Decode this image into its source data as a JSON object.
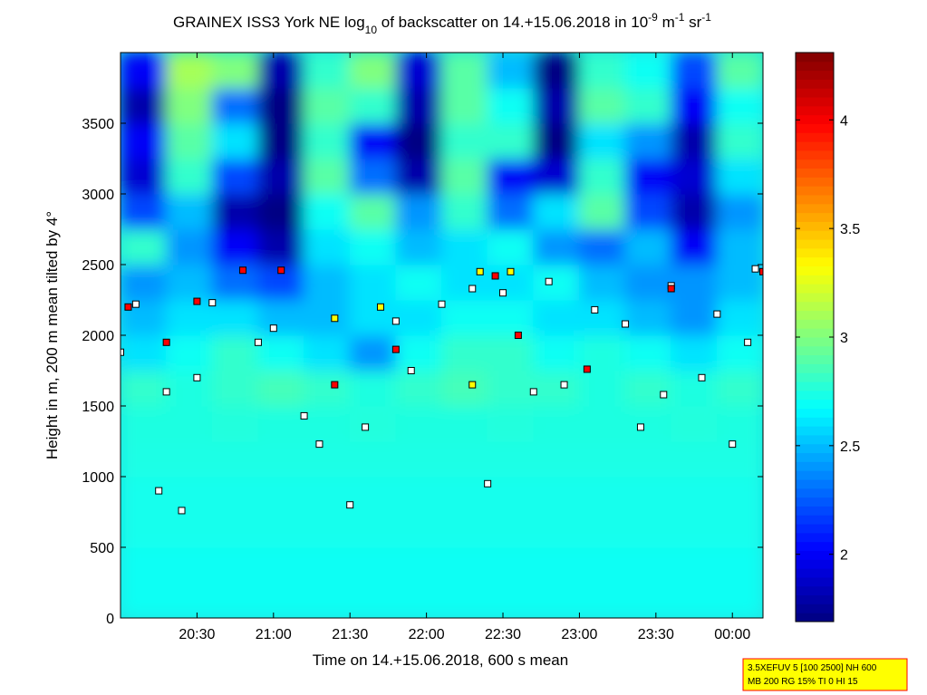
{
  "chart_data": {
    "type": "heatmap",
    "title": [
      "GRAINEX ISS3 York NE log",
      "10",
      " of backscatter on 14.+15.06.2018 in 10",
      "-9",
      " m",
      "-1",
      " sr",
      "-1"
    ],
    "xlabel": "Time on 14.+15.06.2018, 600 s mean",
    "ylabel": "Height in m, 200 m mean tilted by 4°",
    "xlim": [
      20,
      24.2
    ],
    "ylim": [
      0,
      4000
    ],
    "xticks": [
      {
        "value": 20.5,
        "label": "20:30"
      },
      {
        "value": 21,
        "label": "21:00"
      },
      {
        "value": 21.5,
        "label": "21:30"
      },
      {
        "value": 22,
        "label": "22:00"
      },
      {
        "value": 22.5,
        "label": "22:30"
      },
      {
        "value": 23,
        "label": "23:00"
      },
      {
        "value": 23.5,
        "label": "23:30"
      },
      {
        "value": 24,
        "label": "00:00"
      }
    ],
    "yticks": [
      0,
      500,
      1000,
      1500,
      2000,
      2500,
      3000,
      3500
    ],
    "clim": [
      1.69,
      4.31
    ],
    "cticks": [
      2,
      2.5,
      3,
      3.5,
      4
    ],
    "colormap": "jet",
    "x": [
      20.15,
      20.45,
      20.75,
      21.05,
      21.35,
      21.65,
      21.95,
      22.25,
      22.55,
      22.85,
      23.15,
      23.45,
      23.75,
      24.05
    ],
    "y": [
      125,
      375,
      625,
      875,
      1125,
      1375,
      1625,
      1875,
      2125,
      2375,
      2625,
      2875,
      3125,
      3375,
      3625,
      3875
    ],
    "z": [
      [
        2.7,
        2.7,
        2.7,
        2.7,
        2.7,
        2.7,
        2.7,
        2.7,
        2.7,
        2.7,
        2.7,
        2.7,
        2.7,
        2.7
      ],
      [
        2.7,
        2.7,
        2.7,
        2.7,
        2.7,
        2.7,
        2.7,
        2.7,
        2.7,
        2.7,
        2.7,
        2.7,
        2.7,
        2.7
      ],
      [
        2.72,
        2.72,
        2.72,
        2.72,
        2.72,
        2.72,
        2.72,
        2.72,
        2.72,
        2.72,
        2.72,
        2.72,
        2.72,
        2.72
      ],
      [
        2.72,
        2.72,
        2.72,
        2.72,
        2.72,
        2.72,
        2.72,
        2.72,
        2.72,
        2.72,
        2.72,
        2.72,
        2.72,
        2.72
      ],
      [
        2.74,
        2.74,
        2.74,
        2.74,
        2.74,
        2.74,
        2.74,
        2.74,
        2.74,
        2.74,
        2.74,
        2.74,
        2.74,
        2.74
      ],
      [
        2.75,
        2.75,
        2.76,
        2.75,
        2.75,
        2.76,
        2.75,
        2.75,
        2.76,
        2.75,
        2.75,
        2.75,
        2.76,
        2.75
      ],
      [
        2.8,
        2.75,
        2.8,
        2.85,
        2.8,
        2.75,
        2.8,
        2.85,
        2.8,
        2.8,
        2.75,
        2.8,
        2.75,
        2.8
      ],
      [
        2.6,
        2.7,
        2.8,
        2.7,
        2.6,
        2.4,
        2.7,
        2.8,
        2.8,
        2.7,
        2.75,
        2.7,
        2.6,
        2.7
      ],
      [
        2.5,
        2.6,
        2.6,
        2.5,
        2.5,
        2.6,
        2.6,
        2.7,
        2.7,
        2.6,
        2.6,
        2.5,
        2.4,
        2.6
      ],
      [
        2.4,
        2.5,
        2.3,
        2.2,
        2.5,
        2.6,
        2.7,
        2.6,
        2.6,
        2.7,
        2.5,
        2.4,
        2.4,
        2.5
      ],
      [
        2.8,
        2.4,
        2.0,
        1.8,
        2.6,
        2.7,
        2.5,
        2.6,
        2.7,
        2.4,
        2.3,
        2.5,
        2.0,
        2.5
      ],
      [
        2.2,
        2.5,
        1.8,
        1.7,
        2.7,
        2.9,
        2.4,
        2.8,
        2.3,
        2.6,
        2.9,
        2.2,
        1.8,
        2.4
      ],
      [
        1.9,
        2.8,
        2.2,
        1.8,
        2.9,
        2.3,
        1.8,
        2.9,
        2.0,
        1.9,
        2.8,
        2.0,
        1.9,
        2.6
      ],
      [
        2.0,
        2.9,
        2.6,
        1.7,
        2.8,
        2.0,
        1.7,
        2.8,
        2.8,
        1.7,
        2.6,
        2.4,
        1.8,
        2.8
      ],
      [
        1.8,
        3.0,
        2.3,
        1.7,
        2.9,
        2.8,
        1.8,
        2.9,
        2.7,
        1.8,
        2.9,
        2.8,
        2.0,
        2.7
      ],
      [
        2.0,
        3.1,
        3.0,
        1.8,
        2.8,
        3.0,
        1.9,
        2.9,
        2.5,
        1.7,
        2.8,
        2.7,
        2.2,
        2.9
      ]
    ],
    "markers": [
      {
        "color": "#ffffff",
        "x": [
          20.0,
          20.1,
          20.3,
          20.5,
          20.6,
          20.9,
          21.0,
          21.2,
          21.3,
          21.6,
          21.8,
          21.9,
          22.1,
          22.3,
          22.4,
          22.5,
          22.8,
          22.9,
          23.1,
          23.3,
          23.4,
          23.6,
          23.8,
          23.9,
          24.1,
          24.15,
          20.25,
          20.4,
          21.5,
          23.55,
          24.0,
          22.7
        ],
        "y": [
          1880,
          2220,
          1600,
          1700,
          2230,
          1950,
          2050,
          1430,
          1230,
          1350,
          2100,
          1750,
          2220,
          2330,
          950,
          2300,
          2380,
          1650,
          2180,
          2080,
          1350,
          2350,
          1700,
          2150,
          1950,
          2470,
          900,
          760,
          800,
          1580,
          1230,
          1600
        ]
      },
      {
        "color": "#ff0000",
        "x": [
          20.05,
          20.3,
          20.5,
          20.8,
          21.05,
          21.4,
          21.8,
          22.45,
          22.6,
          23.05,
          23.6,
          24.2
        ],
        "y": [
          2200,
          1950,
          2240,
          2460,
          2460,
          1650,
          1900,
          2420,
          2000,
          1760,
          2330,
          2450
        ]
      },
      {
        "color": "#ffff00",
        "x": [
          21.4,
          22.3,
          22.35,
          22.55,
          21.7
        ],
        "y": [
          2120,
          1650,
          2450,
          2450,
          2200
        ]
      }
    ],
    "info": [
      "3.5XEFUV 5 [100 2500] NH 600",
      "MB 200 RG 15% TI 0 HI 15"
    ]
  }
}
